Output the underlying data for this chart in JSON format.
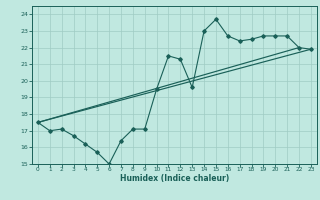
{
  "xlabel": "Humidex (Indice chaleur)",
  "xlim": [
    -0.5,
    23.5
  ],
  "ylim": [
    15,
    24.5
  ],
  "yticks": [
    15,
    16,
    17,
    18,
    19,
    20,
    21,
    22,
    23,
    24
  ],
  "xticks": [
    0,
    1,
    2,
    3,
    4,
    5,
    6,
    7,
    8,
    9,
    10,
    11,
    12,
    13,
    14,
    15,
    16,
    17,
    18,
    19,
    20,
    21,
    22,
    23
  ],
  "bg_color": "#c0e8e0",
  "grid_color": "#a0ccc4",
  "line_color": "#1a6058",
  "line1_x": [
    0,
    1,
    2,
    3,
    4,
    5,
    6,
    7,
    8,
    9,
    10,
    11,
    12,
    13,
    14,
    15,
    16,
    17,
    18,
    19,
    20,
    21,
    22,
    23
  ],
  "line1_y": [
    17.5,
    17.0,
    17.1,
    16.7,
    16.2,
    15.7,
    15.0,
    16.4,
    17.1,
    17.1,
    19.5,
    21.5,
    21.3,
    19.6,
    23.0,
    23.7,
    22.7,
    22.4,
    22.5,
    22.7,
    22.7,
    22.7,
    22.0,
    21.9
  ],
  "trend1_x": [
    0,
    22
  ],
  "trend1_y": [
    17.5,
    22.0
  ],
  "trend2_x": [
    0,
    23
  ],
  "trend2_y": [
    17.5,
    21.9
  ]
}
